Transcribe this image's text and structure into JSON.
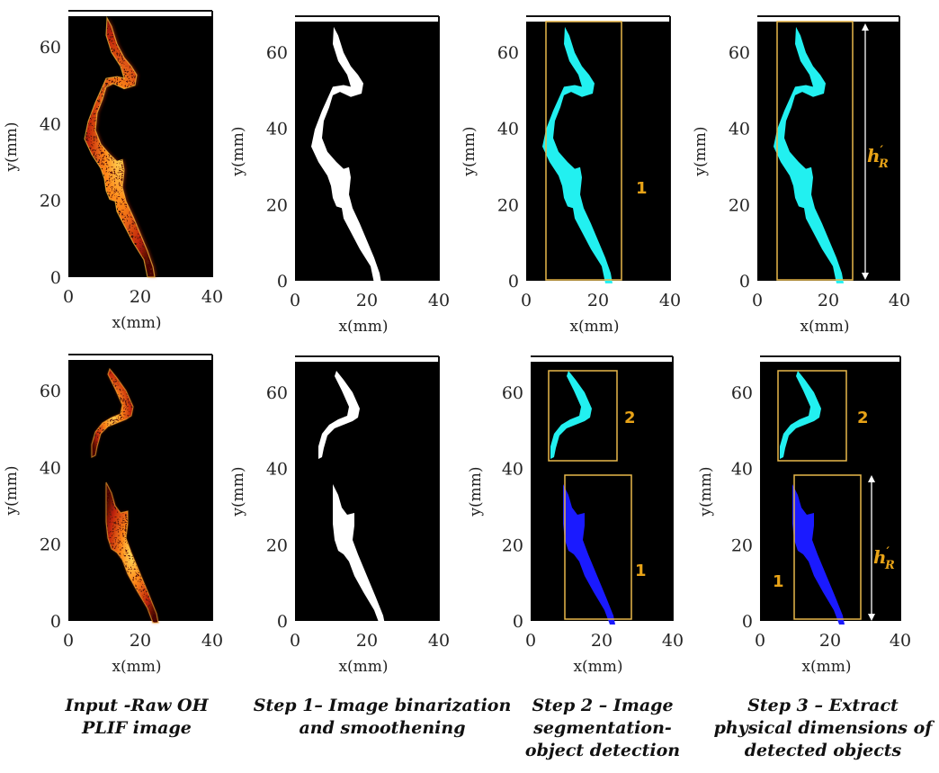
{
  "axes": {
    "x_label": "x(mm)",
    "y_label": "y(mm)",
    "x_ticks": [
      "0",
      "20",
      "40"
    ],
    "y_ticks": [
      "0",
      "20",
      "40",
      "60"
    ]
  },
  "captions": [
    {
      "line1": "Input -Raw OH",
      "line2": "PLIF image"
    },
    {
      "line1": "Step 1– Image binarization",
      "line2": "and smoothening"
    },
    {
      "line1": "Step 2 – Image",
      "line2": "segmentation-",
      "line3": "object detection"
    },
    {
      "line1": "Step 3 – Extract",
      "line2": "physical dimensions of",
      "line3": "detected  objects"
    }
  ],
  "annotations": {
    "object_1": "1",
    "object_2": "2",
    "height_symbol": "h",
    "height_prime": "′",
    "height_subscript": "R"
  },
  "colors": {
    "flame_hot": "#ffd84a",
    "flame_mid": "#e23d12",
    "binary": "#ffffff",
    "object_cyan": "#22f0f0",
    "object_blue": "#1a1aff",
    "bbox": "#e8b84a",
    "label": "#e8a317",
    "background": "#000000"
  }
}
